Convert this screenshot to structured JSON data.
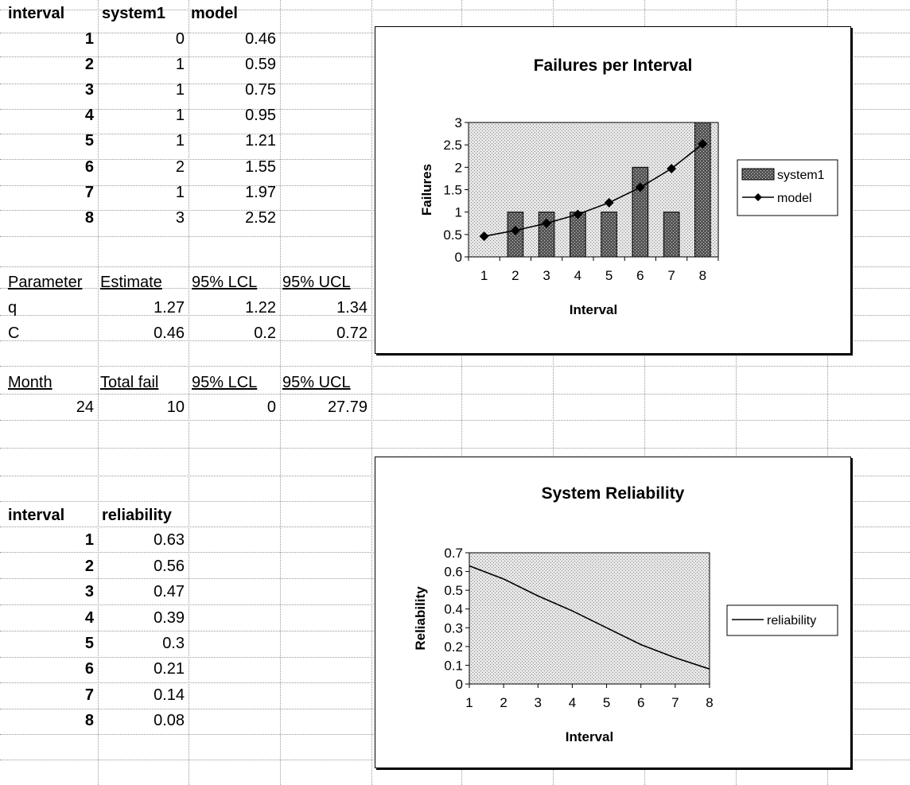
{
  "table1": {
    "headers": [
      "interval",
      "system1",
      "model"
    ],
    "rows": [
      [
        "1",
        "0",
        "0.46"
      ],
      [
        "2",
        "1",
        "0.59"
      ],
      [
        "3",
        "1",
        "0.75"
      ],
      [
        "4",
        "1",
        "0.95"
      ],
      [
        "5",
        "1",
        "1.21"
      ],
      [
        "6",
        "2",
        "1.55"
      ],
      [
        "7",
        "1",
        "1.97"
      ],
      [
        "8",
        "3",
        "2.52"
      ]
    ]
  },
  "params": {
    "headers": [
      "Parameter",
      "Estimate",
      "95% LCL",
      "95% UCL"
    ],
    "rows": [
      [
        "q",
        "1.27",
        "1.22",
        "1.34"
      ],
      [
        "C",
        "0.46",
        "0.2",
        "0.72"
      ]
    ]
  },
  "month": {
    "headers": [
      "Month",
      "Total fail",
      "95% LCL",
      "95% UCL"
    ],
    "row": [
      "24",
      "10",
      "0",
      "27.79"
    ]
  },
  "table2": {
    "headers": [
      "interval",
      "reliability"
    ],
    "rows": [
      [
        "1",
        "0.63"
      ],
      [
        "2",
        "0.56"
      ],
      [
        "3",
        "0.47"
      ],
      [
        "4",
        "0.39"
      ],
      [
        "5",
        "0.3"
      ],
      [
        "6",
        "0.21"
      ],
      [
        "7",
        "0.14"
      ],
      [
        "8",
        "0.08"
      ]
    ]
  },
  "colors": {
    "plot_fill": "#d2d2d2",
    "bar_fill": "#8a8a8a",
    "line": "#000000"
  },
  "chart_data": [
    {
      "type": "bar",
      "title": "Failures per Interval",
      "xlabel": "Interval",
      "ylabel": "Failures",
      "categories": [
        "1",
        "2",
        "3",
        "4",
        "5",
        "6",
        "7",
        "8"
      ],
      "ylim": [
        0,
        3
      ],
      "yticks": [
        "0",
        "0.5",
        "1",
        "1.5",
        "2",
        "2.5",
        "3"
      ],
      "legend_position": "right",
      "series": [
        {
          "name": "system1",
          "type": "bar",
          "values": [
            0,
            1,
            1,
            1,
            1,
            2,
            1,
            3
          ]
        },
        {
          "name": "model",
          "type": "line",
          "marker": "diamond",
          "values": [
            0.46,
            0.59,
            0.75,
            0.95,
            1.21,
            1.55,
            1.97,
            2.52
          ]
        }
      ]
    },
    {
      "type": "line",
      "title": "System Reliability",
      "xlabel": "Interval",
      "ylabel": "Reliability",
      "categories": [
        "1",
        "2",
        "3",
        "4",
        "5",
        "6",
        "7",
        "8"
      ],
      "ylim": [
        0,
        0.7
      ],
      "yticks": [
        "0",
        "0.1",
        "0.2",
        "0.3",
        "0.4",
        "0.5",
        "0.6",
        "0.7"
      ],
      "legend_position": "right",
      "series": [
        {
          "name": "reliability",
          "values": [
            0.63,
            0.56,
            0.47,
            0.39,
            0.3,
            0.21,
            0.14,
            0.08
          ]
        }
      ]
    }
  ]
}
